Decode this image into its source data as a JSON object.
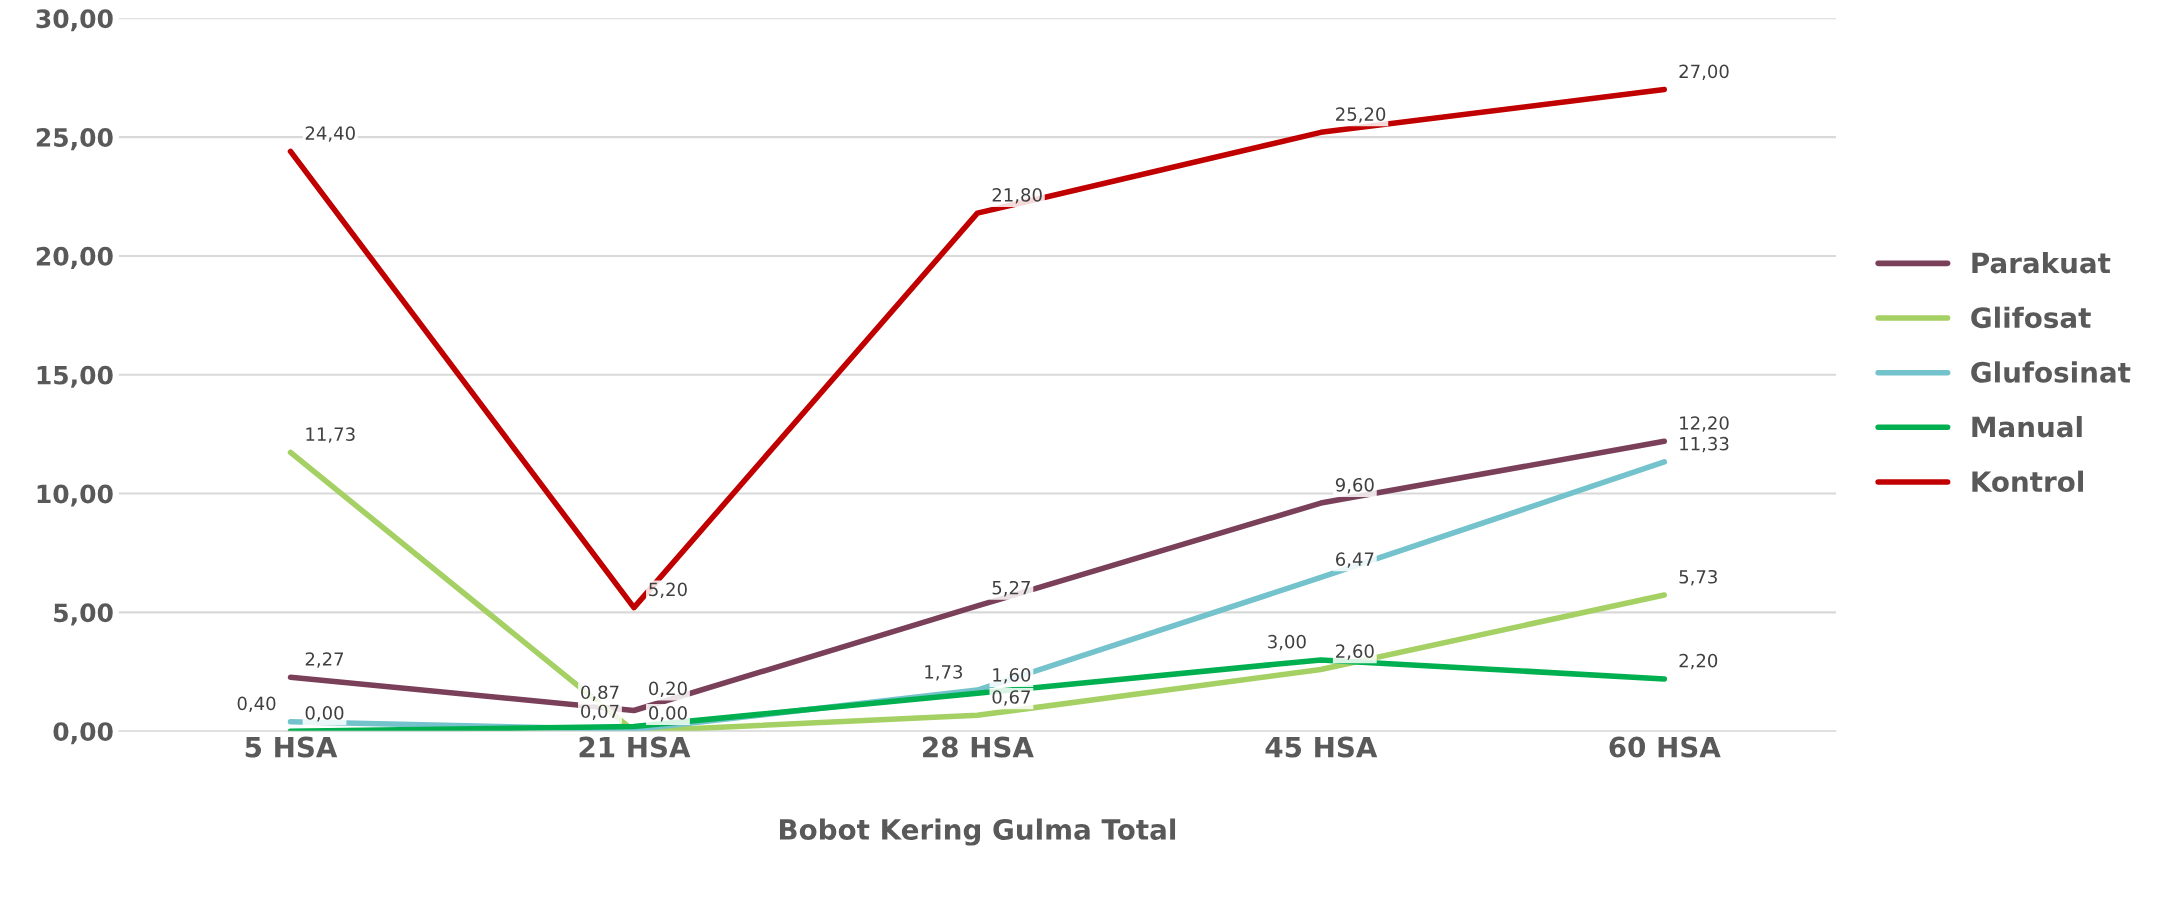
{
  "chart_data": {
    "type": "line",
    "xlabel": "Bobot Kering Gulma Total",
    "categories": [
      "5 HSA",
      "21 HSA",
      "28 HSA",
      "45 HSA",
      "60 HSA"
    ],
    "ylim": [
      0,
      30
    ],
    "yticks": [
      {
        "value": 0,
        "label": "0,00"
      },
      {
        "value": 5,
        "label": "5,00"
      },
      {
        "value": 10,
        "label": "10,00"
      },
      {
        "value": 15,
        "label": "15,00"
      },
      {
        "value": 20,
        "label": "20,00"
      },
      {
        "value": 25,
        "label": "25,00"
      },
      {
        "value": 30,
        "label": "30,00"
      }
    ],
    "grid": "y",
    "legend": "right",
    "marker": "none",
    "line_style": "solid",
    "series": [
      {
        "name": "Parakuat",
        "color": "#7b4059",
        "values": [
          2.27,
          0.87,
          5.27,
          9.6,
          12.2
        ],
        "value_labels": [
          "2,27",
          "0,87",
          "5,27",
          "9,60",
          "12,20"
        ]
      },
      {
        "name": "Glifosat",
        "color": "#a5d063",
        "values": [
          11.73,
          0.0,
          0.67,
          2.6,
          5.73
        ],
        "value_labels": [
          "11,73",
          "0,00",
          "0,67",
          "2,60",
          "5,73"
        ]
      },
      {
        "name": "Glufosinat",
        "color": "#74c3cc",
        "values": [
          0.4,
          0.07,
          1.73,
          6.47,
          11.33
        ],
        "value_labels": [
          "0,40",
          "0,07",
          "1,73",
          "6,47",
          "11,33"
        ]
      },
      {
        "name": "Manual",
        "color": "#00b050",
        "values": [
          0.0,
          0.2,
          1.6,
          3.0,
          2.2
        ],
        "value_labels": [
          "0,00",
          "0,20",
          "1,60",
          "3,00",
          "2,20"
        ]
      },
      {
        "name": "Kontrol",
        "color": "#c00000",
        "values": [
          24.4,
          5.2,
          21.8,
          25.2,
          27.0
        ],
        "value_labels": [
          "24,40",
          "5,20",
          "21,80",
          "25,20",
          "27,00"
        ]
      }
    ]
  }
}
